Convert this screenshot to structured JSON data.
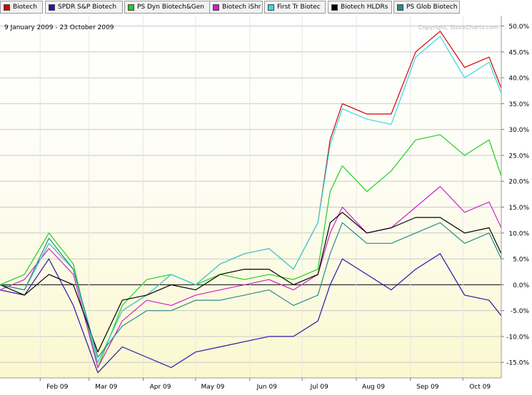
{
  "legend": [
    {
      "label": "Biotech",
      "color": "#d40000"
    },
    {
      "label": "SPDR S&P Biotech",
      "color": "#2a14a8"
    },
    {
      "label": "PS Dyn Biotech&Gen",
      "color": "#22cc22"
    },
    {
      "label": "Biotech iShr",
      "color": "#cc22cc"
    },
    {
      "label": "First Tr Biotec",
      "color": "#33d9e6"
    },
    {
      "label": "Biotech HLDRs",
      "color": "#000000"
    },
    {
      "label": "PS Glob Biotech",
      "color": "#2a8a8a"
    }
  ],
  "date_range": "9 January 2009 - 23 October 2009",
  "watermark": "Copyright, StockCharts.com",
  "chart_data": {
    "type": "line",
    "title": "",
    "xlabel": "",
    "ylabel": "",
    "x_ticks": [
      "Feb 09",
      "Mar 09",
      "Apr 09",
      "May 09",
      "Jun 09",
      "Jul 09",
      "Aug 09",
      "Sep 09",
      "Oct 09"
    ],
    "y_ticks": [
      "50.0%",
      "45.0%",
      "40.0%",
      "35.0%",
      "30.0%",
      "25.0%",
      "20.0%",
      "15.0%",
      "10.0%",
      "5.0%",
      "0.0%",
      "-5.0%",
      "-10.0%",
      "-15.0%"
    ],
    "ylim": [
      -18,
      52
    ],
    "y_unit": "%",
    "grid": true,
    "legend_position": "top",
    "series": [
      {
        "name": "Biotech",
        "color": "#d40000",
        "x": [
          "2009-01-09",
          "2009-01-23",
          "2009-02-06",
          "2009-02-20",
          "2009-03-06",
          "2009-03-20",
          "2009-04-03",
          "2009-04-17",
          "2009-05-01",
          "2009-05-15",
          "2009-05-29",
          "2009-06-12",
          "2009-06-26",
          "2009-07-10",
          "2009-07-17",
          "2009-07-24",
          "2009-08-07",
          "2009-08-21",
          "2009-09-04",
          "2009-09-18",
          "2009-10-02",
          "2009-10-16",
          "2009-10-23"
        ],
        "y": [
          0,
          -1,
          8,
          3,
          -15,
          -5,
          -2,
          2,
          0,
          4,
          6,
          7,
          3,
          12,
          28,
          35,
          33,
          33,
          45,
          49,
          42,
          44,
          38
        ]
      },
      {
        "name": "SPDR S&P Biotech",
        "color": "#2a14a8",
        "x": [
          "2009-01-09",
          "2009-01-23",
          "2009-02-06",
          "2009-02-20",
          "2009-03-06",
          "2009-03-20",
          "2009-04-03",
          "2009-04-17",
          "2009-05-01",
          "2009-05-15",
          "2009-05-29",
          "2009-06-12",
          "2009-06-26",
          "2009-07-10",
          "2009-07-17",
          "2009-07-24",
          "2009-08-07",
          "2009-08-21",
          "2009-09-04",
          "2009-09-18",
          "2009-10-02",
          "2009-10-16",
          "2009-10-23"
        ],
        "y": [
          -1,
          -2,
          5,
          -4,
          -17,
          -12,
          -14,
          -16,
          -13,
          -12,
          -11,
          -10,
          -10,
          -7,
          0,
          5,
          2,
          -1,
          3,
          6,
          -2,
          -3,
          -6
        ]
      },
      {
        "name": "PS Dyn Biotech&Gen",
        "color": "#22cc22",
        "x": [
          "2009-01-09",
          "2009-01-23",
          "2009-02-06",
          "2009-02-20",
          "2009-03-06",
          "2009-03-20",
          "2009-04-03",
          "2009-04-17",
          "2009-05-01",
          "2009-05-15",
          "2009-05-29",
          "2009-06-12",
          "2009-06-26",
          "2009-07-10",
          "2009-07-17",
          "2009-07-24",
          "2009-08-07",
          "2009-08-21",
          "2009-09-04",
          "2009-09-18",
          "2009-10-02",
          "2009-10-16",
          "2009-10-23"
        ],
        "y": [
          0,
          2,
          10,
          4,
          -16,
          -4,
          1,
          2,
          0,
          2,
          1,
          2,
          1,
          3,
          18,
          23,
          18,
          22,
          28,
          29,
          25,
          28,
          21
        ]
      },
      {
        "name": "Biotech iShr",
        "color": "#cc22cc",
        "x": [
          "2009-01-09",
          "2009-01-23",
          "2009-02-06",
          "2009-02-20",
          "2009-03-06",
          "2009-03-20",
          "2009-04-03",
          "2009-04-17",
          "2009-05-01",
          "2009-05-15",
          "2009-05-29",
          "2009-06-12",
          "2009-06-26",
          "2009-07-10",
          "2009-07-17",
          "2009-07-24",
          "2009-08-07",
          "2009-08-21",
          "2009-09-04",
          "2009-09-18",
          "2009-10-02",
          "2009-10-16",
          "2009-10-23"
        ],
        "y": [
          -1,
          1,
          7,
          2,
          -16,
          -7,
          -3,
          -4,
          -2,
          -1,
          0,
          1,
          -1,
          2,
          10,
          15,
          10,
          11,
          15,
          19,
          14,
          16,
          11
        ]
      },
      {
        "name": "First Tr Biotec",
        "color": "#33d9e6",
        "x": [
          "2009-01-09",
          "2009-01-23",
          "2009-02-06",
          "2009-02-20",
          "2009-03-06",
          "2009-03-20",
          "2009-04-03",
          "2009-04-17",
          "2009-05-01",
          "2009-05-15",
          "2009-05-29",
          "2009-06-12",
          "2009-06-26",
          "2009-07-10",
          "2009-07-17",
          "2009-07-24",
          "2009-08-07",
          "2009-08-21",
          "2009-09-04",
          "2009-09-18",
          "2009-10-02",
          "2009-10-16",
          "2009-10-23"
        ],
        "y": [
          0,
          -1,
          8,
          3,
          -15,
          -5,
          -2,
          2,
          0,
          4,
          6,
          7,
          3,
          12,
          27,
          34,
          32,
          31,
          44,
          48,
          40,
          43,
          37
        ]
      },
      {
        "name": "Biotech HLDRs",
        "color": "#000000",
        "x": [
          "2009-01-09",
          "2009-01-23",
          "2009-02-06",
          "2009-02-20",
          "2009-03-06",
          "2009-03-20",
          "2009-04-03",
          "2009-04-17",
          "2009-05-01",
          "2009-05-15",
          "2009-05-29",
          "2009-06-12",
          "2009-06-26",
          "2009-07-10",
          "2009-07-17",
          "2009-07-24",
          "2009-08-07",
          "2009-08-21",
          "2009-09-04",
          "2009-09-18",
          "2009-10-02",
          "2009-10-16",
          "2009-10-23"
        ],
        "y": [
          0,
          -2,
          2,
          0,
          -13,
          -3,
          -2,
          0,
          -1,
          2,
          3,
          3,
          0,
          2,
          12,
          14,
          10,
          11,
          13,
          13,
          10,
          11,
          6
        ]
      },
      {
        "name": "PS Glob Biotech",
        "color": "#2a8a8a",
        "x": [
          "2009-01-09",
          "2009-01-23",
          "2009-02-06",
          "2009-02-20",
          "2009-03-06",
          "2009-03-20",
          "2009-04-03",
          "2009-04-17",
          "2009-05-01",
          "2009-05-15",
          "2009-05-29",
          "2009-06-12",
          "2009-06-26",
          "2009-07-10",
          "2009-07-17",
          "2009-07-24",
          "2009-08-07",
          "2009-08-21",
          "2009-09-04",
          "2009-09-18",
          "2009-10-02",
          "2009-10-16",
          "2009-10-23"
        ],
        "y": [
          0,
          -1,
          9,
          3,
          -14,
          -8,
          -5,
          -5,
          -3,
          -3,
          -2,
          -1,
          -4,
          -2,
          6,
          12,
          8,
          8,
          10,
          12,
          8,
          10,
          5
        ]
      }
    ]
  }
}
